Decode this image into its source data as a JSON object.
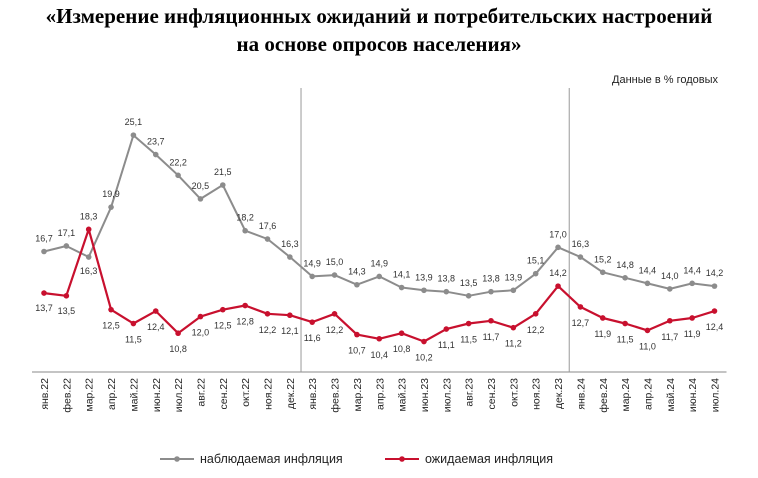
{
  "header": {
    "title_line1": "«Измерение инфляционных ожиданий и потребительских настроений",
    "title_line2": "на основе опросов населения»",
    "units": "Данные в % годовых"
  },
  "colors": {
    "observed": "#8c8c8c",
    "expected": "#c8102e",
    "divider": "#999999"
  },
  "chart_data": {
    "type": "line",
    "categories": [
      "янв.22",
      "фев.22",
      "мар.22",
      "апр.22",
      "май.22",
      "июн.22",
      "июл.22",
      "авг.22",
      "сен.22",
      "окт.22",
      "ноя.22",
      "дек.22",
      "янв.23",
      "фев.23",
      "мар.23",
      "апр.23",
      "май.23",
      "июн.23",
      "июл.23",
      "авг.23",
      "сен.23",
      "окт.23",
      "ноя.23",
      "дек.23",
      "янв.24",
      "фев.24",
      "мар.24",
      "апр.24",
      "май.24",
      "июн.24",
      "июл.24"
    ],
    "series": [
      {
        "name": "наблюдаемая инфляция",
        "values": [
          16.7,
          17.1,
          16.3,
          19.9,
          25.1,
          23.7,
          22.2,
          20.5,
          21.5,
          18.2,
          17.6,
          16.3,
          14.9,
          15.0,
          14.3,
          14.9,
          14.1,
          13.9,
          13.8,
          13.5,
          13.8,
          13.9,
          15.1,
          17.0,
          16.3,
          15.2,
          14.8,
          14.4,
          14.0,
          14.4,
          14.2
        ],
        "labels": [
          "16,7",
          "17,1",
          "16,3",
          "19,9",
          "25,1",
          "23,7",
          "22,2",
          "20,5",
          "21,5",
          "18,2",
          "17,6",
          "16,3",
          "14,9",
          "15,0",
          "14,3",
          "14,9",
          "14,1",
          "13,9",
          "13,8",
          "13,5",
          "13,8",
          "13,9",
          "15,1",
          "17,0",
          "16,3",
          "15,2",
          "14,8",
          "14,4",
          "14,0",
          "14,4",
          "14,2"
        ]
      },
      {
        "name": "ожидаемая инфляция",
        "values": [
          13.7,
          13.5,
          18.3,
          12.5,
          11.5,
          12.4,
          10.8,
          12.0,
          12.5,
          12.8,
          12.2,
          12.1,
          11.6,
          12.2,
          10.7,
          10.4,
          10.8,
          10.2,
          11.1,
          11.5,
          11.7,
          11.2,
          12.2,
          14.2,
          12.7,
          11.9,
          11.5,
          11.0,
          11.7,
          11.9,
          12.4
        ],
        "labels": [
          "13,7",
          "13,5",
          "18,3",
          "12,5",
          "11,5",
          "12,4",
          "10,8",
          "12,0",
          "12,5",
          "12,8",
          "12,2",
          "12,1",
          "11,6",
          "12,2",
          "10,7",
          "10,4",
          "10,8",
          "10,2",
          "11,1",
          "11,5",
          "11,7",
          "11,2",
          "12,2",
          "14,2",
          "12,7",
          "11,9",
          "11,5",
          "11,0",
          "11,7",
          "11,9",
          "12,4"
        ]
      }
    ],
    "dividers_after": [
      "дек.22",
      "дек.23"
    ],
    "ylim": [
      8,
      28
    ],
    "grid": false,
    "legend_position": "bottom"
  }
}
